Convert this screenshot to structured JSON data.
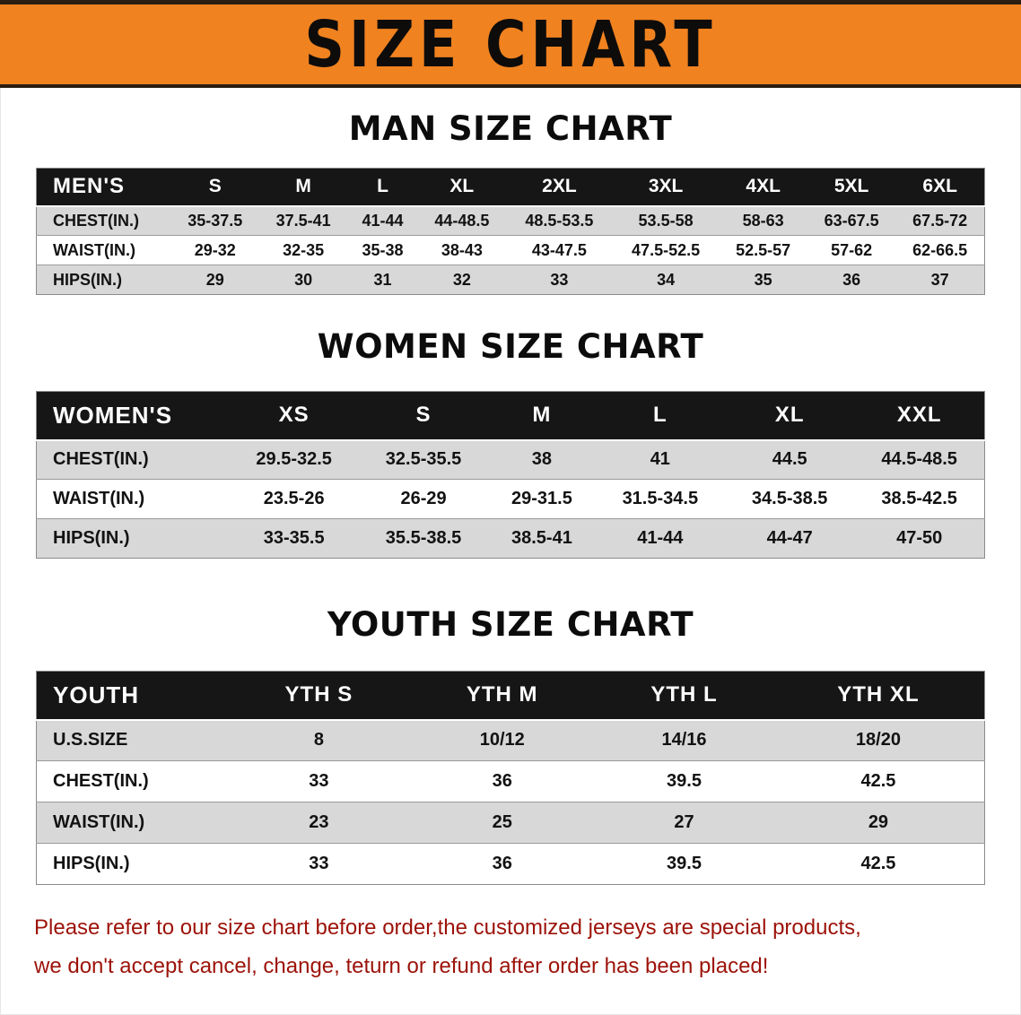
{
  "banner": {
    "title": "SIZE CHART"
  },
  "sections": [
    {
      "heading": "MAN SIZE CHART",
      "table": {
        "name": "mens",
        "header": [
          "MEN'S",
          "S",
          "M",
          "L",
          "XL",
          "2XL",
          "3XL",
          "4XL",
          "5XL",
          "6XL"
        ],
        "rows": [
          {
            "label": "CHEST(IN.)",
            "values": [
              "35-37.5",
              "37.5-41",
              "41-44",
              "44-48.5",
              "48.5-53.5",
              "53.5-58",
              "58-63",
              "63-67.5",
              "67.5-72"
            ]
          },
          {
            "label": "WAIST(IN.)",
            "values": [
              "29-32",
              "32-35",
              "35-38",
              "38-43",
              "43-47.5",
              "47.5-52.5",
              "52.5-57",
              "57-62",
              "62-66.5"
            ]
          },
          {
            "label": "HIPS(IN.)",
            "values": [
              "29",
              "30",
              "31",
              "32",
              "33",
              "34",
              "35",
              "36",
              "37"
            ]
          }
        ]
      }
    },
    {
      "heading": "WOMEN SIZE CHART",
      "table": {
        "name": "womens",
        "header": [
          "WOMEN'S",
          "XS",
          "S",
          "M",
          "L",
          "XL",
          "XXL"
        ],
        "rows": [
          {
            "label": "CHEST(IN.)",
            "values": [
              "29.5-32.5",
              "32.5-35.5",
              "38",
              "41",
              "44.5",
              "44.5-48.5"
            ]
          },
          {
            "label": "WAIST(IN.)",
            "values": [
              "23.5-26",
              "26-29",
              "29-31.5",
              "31.5-34.5",
              "34.5-38.5",
              "38.5-42.5"
            ]
          },
          {
            "label": "HIPS(IN.)",
            "values": [
              "33-35.5",
              "35.5-38.5",
              "38.5-41",
              "41-44",
              "44-47",
              "47-50"
            ]
          }
        ]
      }
    },
    {
      "heading": "YOUTH SIZE CHART",
      "table": {
        "name": "youth",
        "header": [
          "YOUTH",
          "YTH S",
          "YTH M",
          "YTH L",
          "YTH XL"
        ],
        "rows": [
          {
            "label": "U.S.SIZE",
            "values": [
              "8",
              "10/12",
              "14/16",
              "18/20"
            ]
          },
          {
            "label": "CHEST(IN.)",
            "values": [
              "33",
              "36",
              "39.5",
              "42.5"
            ]
          },
          {
            "label": "WAIST(IN.)",
            "values": [
              "23",
              "25",
              "27",
              "29"
            ]
          },
          {
            "label": "HIPS(IN.)",
            "values": [
              "33",
              "36",
              "39.5",
              "42.5"
            ]
          }
        ]
      }
    }
  ],
  "footer": {
    "line1": "Please refer to our size chart before order,the customized jerseys are special products,",
    "line2": "we don't accept cancel, change, teturn or refund after order has been placed!"
  },
  "colors": {
    "banner_bg": "#f08220",
    "header_bg": "#161616",
    "row_alt_bg": "#d8d8d8",
    "footer_text": "#9c1209"
  }
}
